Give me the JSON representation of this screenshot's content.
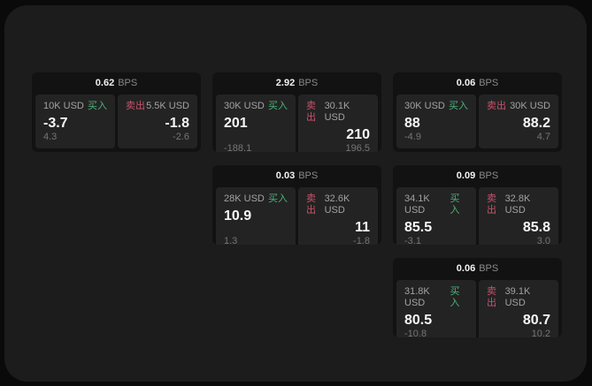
{
  "colors": {
    "accent_green": "#4db377",
    "accent_red": "#c9536a",
    "window_bg": "#1c1c1c",
    "card_bg": "#121212",
    "panel_bg": "#232324"
  },
  "labels": {
    "bps_unit": "BPS",
    "buy": "买入",
    "sell": "卖出"
  },
  "cards": [
    {
      "col": 1,
      "row": 1,
      "bps": "0.62",
      "buy": {
        "amount": "10K USD",
        "side": "买入",
        "value": "-3.7",
        "sub": "4.3"
      },
      "sell": {
        "amount": "5.5K USD",
        "side": "卖出",
        "value": "-1.8",
        "sub": "-2.6"
      }
    },
    {
      "col": 2,
      "row": 1,
      "bps": "2.92",
      "buy": {
        "amount": "30K USD",
        "side": "买入",
        "value": "201",
        "sub": "-188.1"
      },
      "sell": {
        "amount": "30.1K USD",
        "side": "卖出",
        "value": "210",
        "sub": "196.5"
      }
    },
    {
      "col": 3,
      "row": 1,
      "bps": "0.06",
      "buy": {
        "amount": "30K USD",
        "side": "买入",
        "value": "88",
        "sub": "-4.9"
      },
      "sell": {
        "amount": "30K USD",
        "side": "卖出",
        "value": "88.2",
        "sub": "4.7"
      }
    },
    {
      "col": 2,
      "row": 2,
      "bps": "0.03",
      "buy": {
        "amount": "28K USD",
        "side": "买入",
        "value": "10.9",
        "sub": "1.3"
      },
      "sell": {
        "amount": "32.6K USD",
        "side": "卖出",
        "value": "11",
        "sub": "-1.8"
      }
    },
    {
      "col": 3,
      "row": 2,
      "bps": "0.09",
      "buy": {
        "amount": "34.1K USD",
        "side": "买入",
        "value": "85.5",
        "sub": "-3.1"
      },
      "sell": {
        "amount": "32.8K USD",
        "side": "卖出",
        "value": "85.8",
        "sub": "3.0"
      }
    },
    {
      "col": 3,
      "row": 3,
      "bps": "0.06",
      "buy": {
        "amount": "31.8K USD",
        "side": "买入",
        "value": "80.5",
        "sub": "-10.8"
      },
      "sell": {
        "amount": "39.1K USD",
        "side": "卖出",
        "value": "80.7",
        "sub": "10.2"
      }
    }
  ]
}
